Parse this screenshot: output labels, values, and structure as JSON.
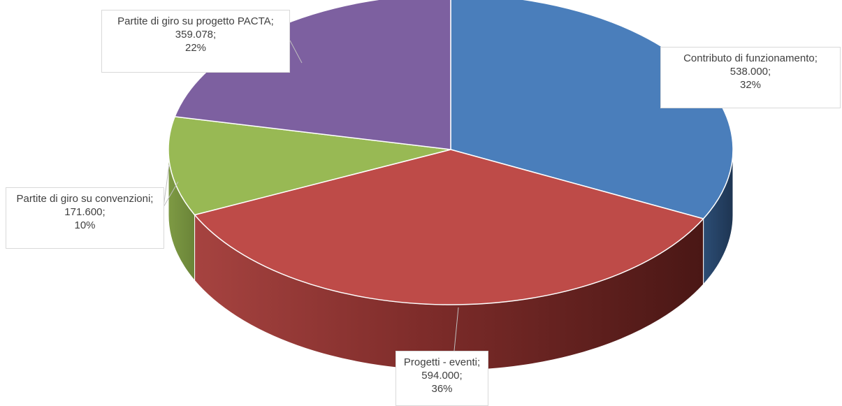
{
  "chart_data": {
    "type": "pie",
    "title": "",
    "style": "3d-exploded-none",
    "slices": [
      {
        "label": "Contributo di funzionamento",
        "value": 538000,
        "value_text": "538.000;",
        "percent_text": "32%",
        "color": "#4a7ebb"
      },
      {
        "label": "Progetti - eventi",
        "value": 594000,
        "value_text": "594.000;",
        "percent_text": "36%",
        "color": "#be4b48"
      },
      {
        "label": "Partite di giro su convenzioni",
        "value": 171600,
        "value_text": "171.600;",
        "percent_text": "10%",
        "color": "#98b954"
      },
      {
        "label": "Partite di giro su progetto PACTA",
        "value": 359078,
        "value_text": "359.078;",
        "percent_text": "22%",
        "color": "#7d60a0"
      }
    ],
    "data_labels": {
      "contributo": {
        "name": "Contributo di funzionamento;",
        "value": "538.000;",
        "percent": "32%"
      },
      "progetti": {
        "name": "Progetti - eventi;",
        "value": "594.000;",
        "percent": "36%"
      },
      "convenzioni": {
        "name": "Partite di giro su convenzioni;",
        "value": "171.600;",
        "percent": "10%"
      },
      "pacta": {
        "name": "Partite di giro su progetto PACTA;",
        "value": "359.078;",
        "percent": "22%"
      }
    }
  }
}
